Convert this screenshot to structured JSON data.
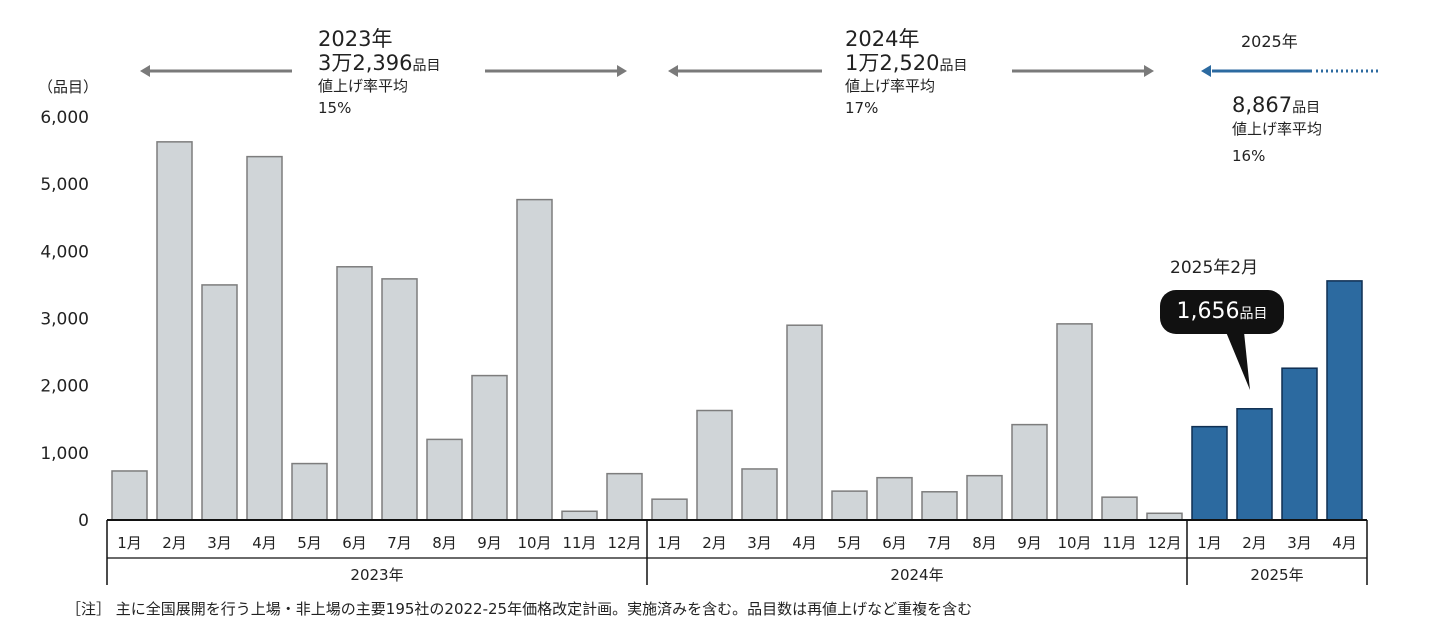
{
  "chart_data": {
    "type": "bar",
    "y_unit_label": "（品目）",
    "ylim": [
      0,
      6000
    ],
    "yticks": [
      "0",
      "1,000",
      "2,000",
      "3,000",
      "4,000",
      "5,000",
      "6,000"
    ],
    "ytick_values": [
      0,
      1000,
      2000,
      3000,
      4000,
      5000,
      6000
    ],
    "groups": [
      {
        "year_label": "2023年",
        "highlight": false,
        "months": [
          "1月",
          "2月",
          "3月",
          "4月",
          "5月",
          "6月",
          "7月",
          "8月",
          "9月",
          "10月",
          "11月",
          "12月"
        ],
        "values": [
          730,
          5630,
          3500,
          5410,
          840,
          3770,
          3590,
          1200,
          2150,
          4770,
          130,
          690
        ]
      },
      {
        "year_label": "2024年",
        "highlight": false,
        "months": [
          "1月",
          "2月",
          "3月",
          "4月",
          "5月",
          "6月",
          "7月",
          "8月",
          "9月",
          "10月",
          "11月",
          "12月"
        ],
        "values": [
          310,
          1630,
          760,
          2900,
          430,
          630,
          420,
          660,
          1420,
          2920,
          340,
          100
        ]
      },
      {
        "year_label": "2025年",
        "highlight": true,
        "months": [
          "1月",
          "2月",
          "3月",
          "4月"
        ],
        "values": [
          1390,
          1656,
          2260,
          3560
        ]
      }
    ],
    "colors": {
      "past_bar": "#d0d5d8",
      "past_edge": "#7d7d7d",
      "current_bar": "#2c6aa0",
      "current_edge": "#0f2f52",
      "arrow_gray": "#7a7a7a",
      "arrow_blue": "#2c6aa0"
    }
  },
  "annotations": {
    "y2023": {
      "year": "2023年",
      "count": "3万2,396",
      "unit": "品目",
      "rate_label": "値上げ率平均",
      "rate": "15%"
    },
    "y2024": {
      "year": "2024年",
      "count": "1万2,520",
      "unit": "品目",
      "rate_label": "値上げ率平均",
      "rate": "17%"
    },
    "y2025": {
      "year": "2025年",
      "count": "8,867",
      "unit": "品目",
      "rate_label": "値上げ率平均",
      "rate": "16%"
    },
    "callout": {
      "title": "2025年2月",
      "count": "1,656",
      "unit": "品目"
    }
  },
  "footnote": "［注］ 主に全国展開を行う上場・非上場の主要195社の2022-25年価格改定計画。実施済みを含む。品目数は再値上げなど重複を含む"
}
